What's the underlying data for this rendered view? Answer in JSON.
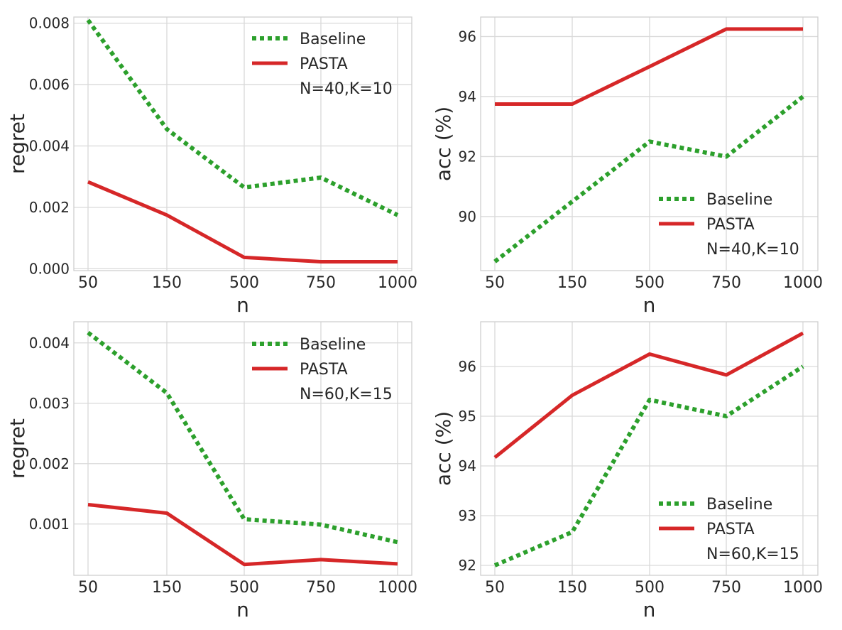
{
  "chart_data": [
    {
      "type": "line",
      "categories": [
        "50",
        "150",
        "500",
        "750",
        "1000"
      ],
      "xlabel": "n",
      "ylabel": "regret",
      "ylim": [
        -6e-05,
        0.0082
      ],
      "yticks": [
        0.0,
        0.002,
        0.004,
        0.006,
        0.008
      ],
      "ytick_labels": [
        "0.000",
        "0.002",
        "0.004",
        "0.006",
        "0.008"
      ],
      "series": [
        {
          "name": "Baseline",
          "style": "dotted",
          "color": "#2ca02c",
          "values": [
            0.0081,
            0.00455,
            0.00265,
            0.00297,
            0.00175
          ]
        },
        {
          "name": "PASTA",
          "style": "solid",
          "color": "#d62728",
          "values": [
            0.00283,
            0.00175,
            0.00037,
            0.00023,
            0.00023
          ]
        }
      ],
      "legend_note": "N=40,K=10",
      "legend_position": "top-right",
      "grid": true
    },
    {
      "type": "line",
      "categories": [
        "50",
        "150",
        "500",
        "750",
        "1000"
      ],
      "xlabel": "n",
      "ylabel": "acc (%)",
      "ylim": [
        88.2,
        96.65
      ],
      "yticks": [
        90,
        92,
        94,
        96
      ],
      "ytick_labels": [
        "90",
        "92",
        "94",
        "96"
      ],
      "series": [
        {
          "name": "Baseline",
          "style": "dotted",
          "color": "#2ca02c",
          "values": [
            88.5,
            90.5,
            92.5,
            92.0,
            94.0
          ]
        },
        {
          "name": "PASTA",
          "style": "solid",
          "color": "#d62728",
          "values": [
            93.75,
            93.75,
            95.0,
            96.25,
            96.25
          ]
        }
      ],
      "legend_note": "N=40,K=10",
      "legend_position": "bottom-right",
      "grid": true
    },
    {
      "type": "line",
      "categories": [
        "50",
        "150",
        "500",
        "750",
        "1000"
      ],
      "xlabel": "n",
      "ylabel": "regret",
      "ylim": [
        0.00015,
        0.00435
      ],
      "yticks": [
        0.001,
        0.002,
        0.003,
        0.004
      ],
      "ytick_labels": [
        "0.001",
        "0.002",
        "0.003",
        "0.004"
      ],
      "series": [
        {
          "name": "Baseline",
          "style": "dotted",
          "color": "#2ca02c",
          "values": [
            0.00417,
            0.00317,
            0.00108,
            0.00099,
            0.0007
          ]
        },
        {
          "name": "PASTA",
          "style": "solid",
          "color": "#d62728",
          "values": [
            0.00132,
            0.00118,
            0.00033,
            0.00041,
            0.00034
          ]
        }
      ],
      "legend_note": "N=60,K=15",
      "legend_position": "top-right",
      "grid": true
    },
    {
      "type": "line",
      "categories": [
        "50",
        "150",
        "500",
        "750",
        "1000"
      ],
      "xlabel": "n",
      "ylabel": "acc (%)",
      "ylim": [
        91.8,
        96.9
      ],
      "yticks": [
        92,
        93,
        94,
        95,
        96
      ],
      "ytick_labels": [
        "92",
        "93",
        "94",
        "95",
        "96"
      ],
      "series": [
        {
          "name": "Baseline",
          "style": "dotted",
          "color": "#2ca02c",
          "values": [
            92.0,
            92.67,
            95.33,
            95.0,
            96.0
          ]
        },
        {
          "name": "PASTA",
          "style": "solid",
          "color": "#d62728",
          "values": [
            94.17,
            95.42,
            96.25,
            95.83,
            96.67
          ]
        }
      ],
      "legend_note": "N=60,K=15",
      "legend_position": "bottom-right",
      "grid": true
    }
  ]
}
